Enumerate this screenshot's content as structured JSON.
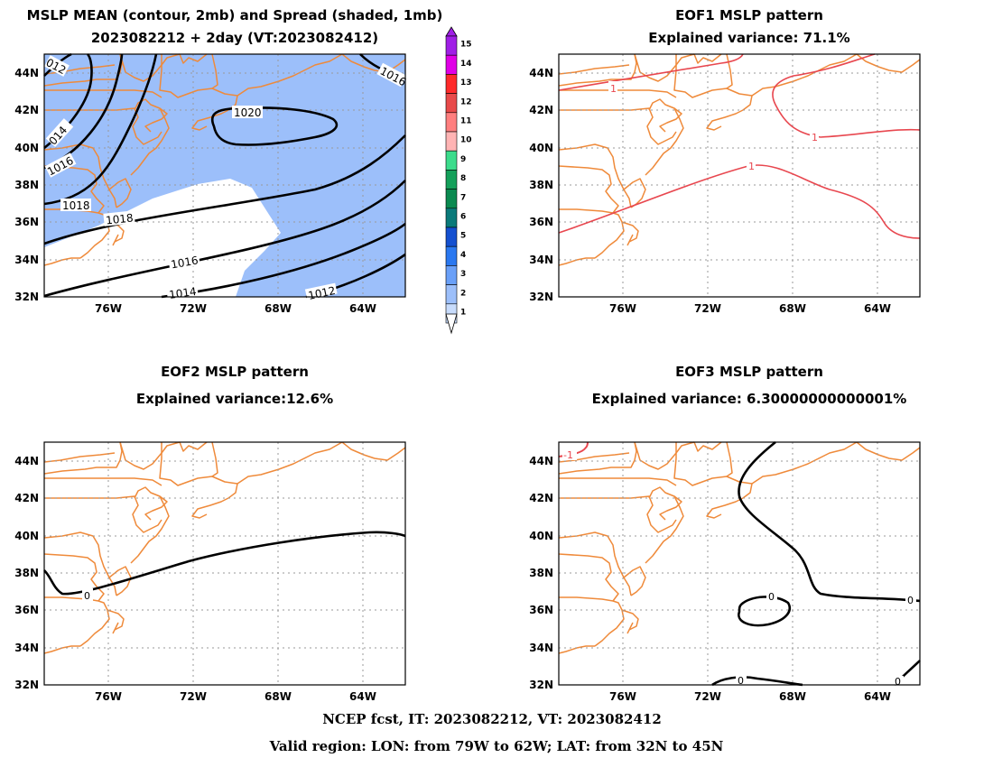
{
  "panels": {
    "mean": {
      "title_line1": "MSLP MEAN (contour, 2mb) and Spread (shaded, 1mb)",
      "title_line2": "2023082212 + 2day (VT:2023082412)",
      "contour_labels": [
        "012",
        "014",
        "1016",
        "1018",
        "1018",
        "1020",
        "1016",
        "1014",
        "1012",
        "1016"
      ],
      "spread_color": "#9cbffa"
    },
    "eof1": {
      "title_line1": "EOF1 MSLP pattern",
      "title_line2": "Explained variance: 71.1%",
      "contour_labels": [
        "1",
        "1",
        "1"
      ],
      "line_color": "#e8474f"
    },
    "eof2": {
      "title_line1": "EOF2 MSLP pattern",
      "title_line2": "Explained variance:12.6%",
      "contour_labels": [
        "0"
      ],
      "line_color": "#000000"
    },
    "eof3": {
      "title_line1": "EOF3 MSLP pattern",
      "title_line2": "Explained variance: 6.30000000000001%",
      "contour_labels": [
        "-1",
        "0",
        "0",
        "0",
        "0"
      ],
      "line_color": "#000000"
    }
  },
  "axes": {
    "lat_labels": [
      "44N",
      "42N",
      "40N",
      "38N",
      "36N",
      "34N",
      "32N"
    ],
    "lon_labels": [
      "76W",
      "72W",
      "68W",
      "64W"
    ]
  },
  "colorbar": {
    "labels": [
      "15",
      "14",
      "13",
      "12",
      "11",
      "10",
      "9",
      "8",
      "7",
      "6",
      "5",
      "4",
      "3",
      "2",
      "1"
    ],
    "colors": [
      "#a01fe6",
      "#e000e6",
      "#ff2a2a",
      "#e84a4a",
      "#ff7f7f",
      "#ffb4b4",
      "#3cdc8c",
      "#14a05a",
      "#0a8a50",
      "#0a7a7a",
      "#1450d0",
      "#2a78f0",
      "#6aa0f8",
      "#9cbffa",
      "#c8dcfc"
    ]
  },
  "footer": {
    "line1": "NCEP fcst, IT: 2023082212, VT: 2023082412",
    "line2": "Valid region: LON: from 79W to 62W; LAT: from 32N to 45N"
  }
}
